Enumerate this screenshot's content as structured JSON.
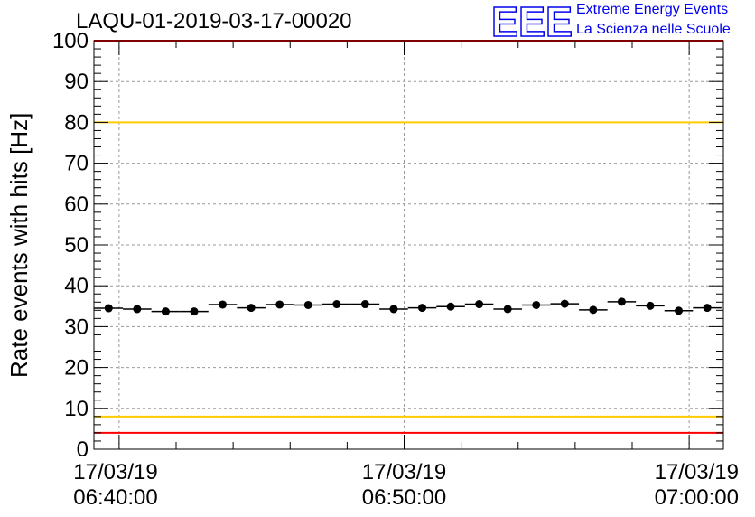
{
  "title": "LAQU-01-2019-03-17-00020",
  "logo": {
    "mark": "EEE",
    "line1": "Extreme Energy Events",
    "line2": "La Scienza nelle Scuole",
    "color": "#0000ee"
  },
  "chart_data": {
    "type": "scatter",
    "title": "LAQU-01-2019-03-17-00020",
    "xlabel": "",
    "ylabel": "Rate events with hits [Hz]",
    "ylim": [
      0,
      100
    ],
    "yticks": [
      0,
      10,
      20,
      30,
      40,
      50,
      60,
      70,
      80,
      90,
      100
    ],
    "xlim": [
      "2019-03-17 06:39:07",
      "2019-03-17 07:01:12"
    ],
    "xticks": [
      {
        "date": "17/03/19",
        "time": "06:40:00"
      },
      {
        "date": "17/03/19",
        "time": "06:50:00"
      },
      {
        "date": "17/03/19",
        "time": "07:00:00"
      }
    ],
    "grid": true,
    "bin_width_seconds": 60,
    "series": [
      {
        "x": [
          "06:39:38",
          "06:40:38",
          "06:41:38",
          "06:42:38",
          "06:43:38",
          "06:44:38",
          "06:45:38",
          "06:46:38",
          "06:47:38",
          "06:48:38",
          "06:49:38",
          "06:50:38",
          "06:51:38",
          "06:52:38",
          "06:53:38",
          "06:54:38",
          "06:55:38",
          "06:56:38",
          "06:57:38",
          "06:58:38",
          "06:59:38",
          "07:00:38"
        ],
        "values": [
          34.5,
          34.3,
          33.7,
          33.7,
          35.4,
          34.6,
          35.4,
          35.3,
          35.5,
          35.5,
          34.3,
          34.6,
          34.9,
          35.5,
          34.3,
          35.3,
          35.6,
          34.1,
          36.1,
          35.1,
          33.9,
          34.6
        ]
      }
    ],
    "reference_lines": [
      {
        "value": 4,
        "color": "#ff0000"
      },
      {
        "value": 8,
        "color": "#ffcc00"
      },
      {
        "value": 80,
        "color": "#ffcc00"
      },
      {
        "value": 100,
        "color": "#ff0000"
      }
    ]
  }
}
